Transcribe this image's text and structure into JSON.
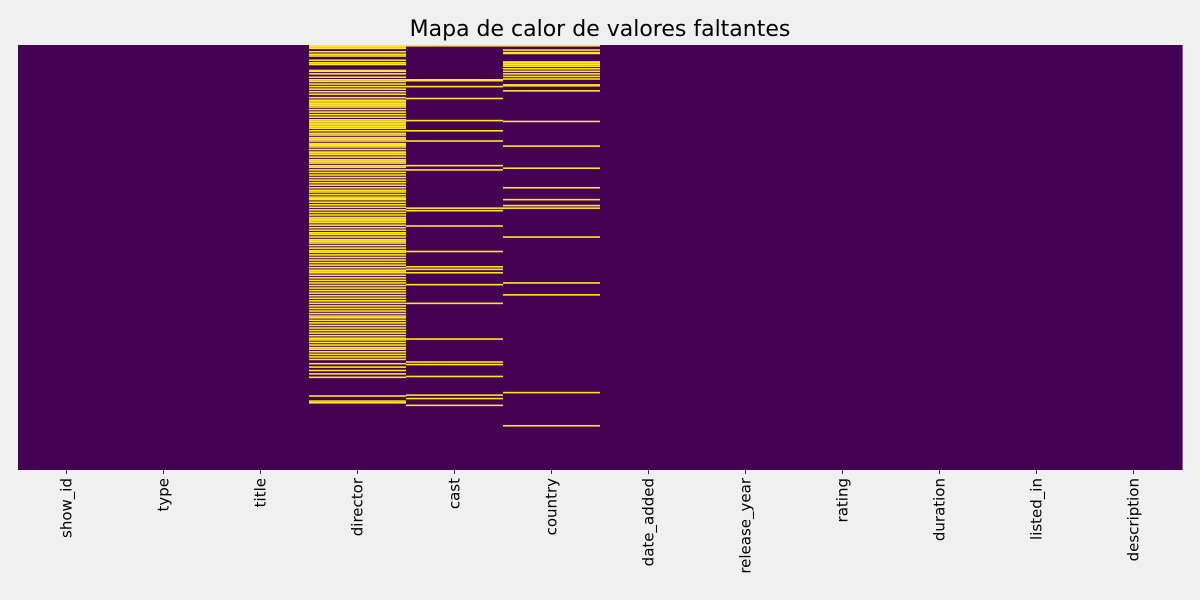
{
  "chart_data": {
    "type": "heatmap",
    "title": "Mapa de calor de valores faltantes",
    "xlabel": "",
    "ylabel": "",
    "columns": [
      "show_id",
      "type",
      "title",
      "director",
      "cast",
      "country",
      "date_added",
      "release_year",
      "rating",
      "duration",
      "listed_in",
      "description"
    ],
    "n_rows": 500,
    "value_colors": {
      "present": "#440154",
      "missing": "#fde725"
    },
    "missing_rows": {
      "show_id": [],
      "type": [],
      "title": [],
      "director": [
        0,
        1,
        3,
        7,
        10,
        12,
        17,
        20,
        22,
        29,
        30,
        33,
        37,
        40,
        42,
        45,
        48,
        51,
        54,
        57,
        61,
        64,
        66,
        68,
        70,
        72,
        75,
        78,
        81,
        84,
        87,
        89,
        91,
        93,
        95,
        97,
        100,
        103,
        105,
        108,
        110,
        112,
        115,
        116,
        117,
        119,
        122,
        125,
        126,
        128,
        131,
        134,
        136,
        138,
        141,
        143,
        146,
        149,
        152,
        155,
        158,
        161,
        164,
        167,
        170,
        172,
        175,
        178,
        180,
        181,
        184,
        187,
        190,
        193,
        196,
        199,
        202,
        204,
        206,
        208,
        211,
        214,
        217,
        220,
        222,
        225,
        228,
        230,
        232,
        235,
        238,
        241,
        243,
        246,
        249,
        252,
        255,
        258,
        261,
        264,
        265,
        267,
        270,
        273,
        276,
        279,
        282,
        285,
        288,
        291,
        294,
        297,
        300,
        303,
        306,
        309,
        312,
        315,
        318,
        320,
        323,
        326,
        329,
        332,
        335,
        338,
        341,
        344,
        346,
        349,
        352,
        355,
        357,
        360,
        363,
        366,
        369,
        374,
        378,
        382,
        386,
        390,
        412,
        420,
        418
      ],
      "cast": [
        0,
        40,
        41,
        48,
        62,
        88,
        100,
        112,
        141,
        146,
        191,
        194,
        212,
        242,
        260,
        263,
        267,
        281,
        303,
        345,
        372,
        375,
        389,
        411,
        415,
        423
      ],
      "country": [
        0,
        5,
        8,
        9,
        19,
        20,
        22,
        24,
        27,
        30,
        33,
        36,
        39,
        46,
        47,
        53,
        89,
        118,
        144,
        167,
        181,
        188,
        191,
        225,
        279,
        293,
        408,
        447
      ],
      "date_added": [],
      "release_year": [],
      "rating": [],
      "duration": [],
      "listed_in": [],
      "description": []
    }
  }
}
